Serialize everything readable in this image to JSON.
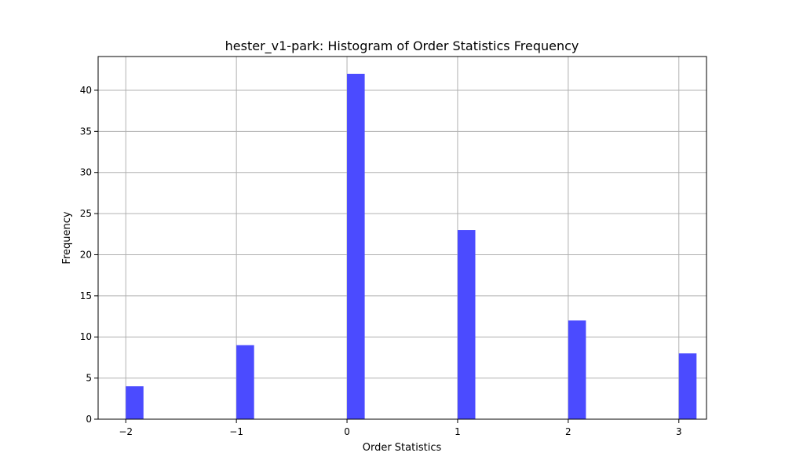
{
  "chart_data": {
    "type": "bar",
    "title": "hester_v1-park: Histogram of Order Statistics Frequency",
    "xlabel": "Order Statistics",
    "ylabel": "Frequency",
    "x": [
      -2,
      -1,
      0,
      1,
      2,
      3
    ],
    "values": [
      4,
      9,
      42,
      23,
      12,
      8
    ],
    "xlim": [
      -2.25,
      3.25
    ],
    "ylim": [
      0,
      44.1
    ],
    "xticks": [
      -2,
      -1,
      0,
      1,
      2,
      3
    ],
    "xtick_labels": [
      "−2",
      "−1",
      "0",
      "1",
      "2",
      "3"
    ],
    "yticks": [
      0,
      5,
      10,
      15,
      20,
      25,
      30,
      35,
      40
    ],
    "ytick_labels": [
      "0",
      "5",
      "10",
      "15",
      "20",
      "25",
      "30",
      "35",
      "40"
    ],
    "bar_color": "#4b4bff",
    "grid": true,
    "legend": "none"
  }
}
